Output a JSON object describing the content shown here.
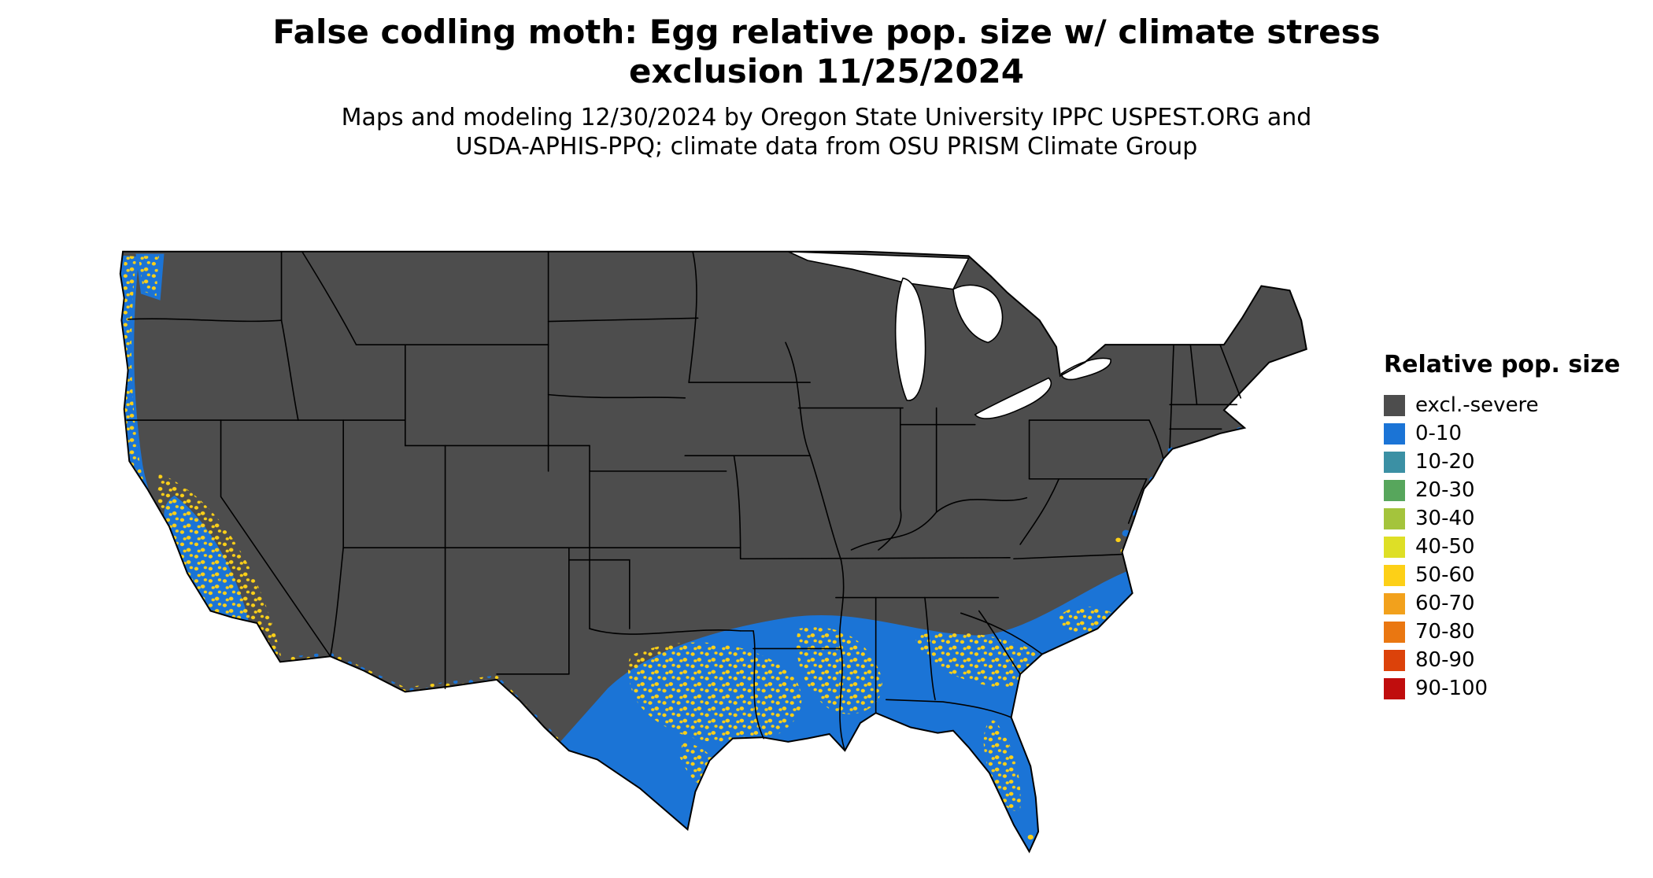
{
  "header": {
    "title_line1": "False codling moth: Egg relative pop. size w/ climate stress",
    "title_line2": "exclusion 11/25/2024",
    "subtitle_line1": "Maps and modeling 12/30/2024 by Oregon State University IPPC USPEST.ORG and",
    "subtitle_line2": "USDA-APHIS-PPQ; climate data from OSU PRISM Climate Group"
  },
  "legend": {
    "title": "Relative pop. size",
    "items": [
      {
        "label": "excl.-severe",
        "color": "#4d4d4d"
      },
      {
        "label": "0-10",
        "color": "#1b74d6"
      },
      {
        "label": "10-20",
        "color": "#3b90a4"
      },
      {
        "label": "20-30",
        "color": "#57a65c"
      },
      {
        "label": "30-40",
        "color": "#a4c43c"
      },
      {
        "label": "40-50",
        "color": "#dedf26"
      },
      {
        "label": "50-60",
        "color": "#fdd017"
      },
      {
        "label": "60-70",
        "color": "#f2a11c"
      },
      {
        "label": "70-80",
        "color": "#ea7711"
      },
      {
        "label": "80-90",
        "color": "#dc420a"
      },
      {
        "label": "90-100",
        "color": "#c00d0d"
      }
    ]
  },
  "map": {
    "region": "Contiguous United States",
    "colors": {
      "excluded": "#4d4d4d",
      "low": "#1b74d6",
      "mid": "#fdd017",
      "water": "#ffffff",
      "border": "#000000"
    }
  }
}
